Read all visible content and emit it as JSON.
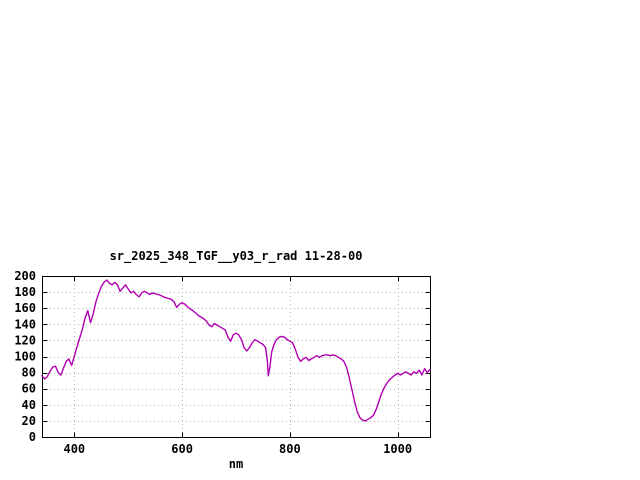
{
  "chart_data": {
    "type": "line",
    "title": "sr_2025_348_TGF__y03_r_rad 11-28-00",
    "xlabel": "nm",
    "ylabel": "",
    "xlim": [
      340,
      1060
    ],
    "ylim": [
      0,
      200
    ],
    "xticks": [
      400,
      600,
      800,
      1000
    ],
    "yticks": [
      0,
      20,
      40,
      60,
      80,
      100,
      120,
      140,
      160,
      180,
      200
    ],
    "grid": true,
    "legend": "none",
    "line_color": "#b000b0",
    "grid_color": "#b4b4b4",
    "border_color": "#000000",
    "series": [
      {
        "points": [
          [
            340,
            76
          ],
          [
            345,
            72
          ],
          [
            350,
            75
          ],
          [
            355,
            82
          ],
          [
            360,
            87
          ],
          [
            365,
            88
          ],
          [
            370,
            80
          ],
          [
            375,
            77
          ],
          [
            380,
            86
          ],
          [
            385,
            94
          ],
          [
            390,
            97
          ],
          [
            395,
            89
          ],
          [
            400,
            100
          ],
          [
            405,
            112
          ],
          [
            410,
            123
          ],
          [
            415,
            134
          ],
          [
            420,
            148
          ],
          [
            425,
            157
          ],
          [
            430,
            142
          ],
          [
            435,
            153
          ],
          [
            440,
            168
          ],
          [
            445,
            178
          ],
          [
            450,
            187
          ],
          [
            455,
            192
          ],
          [
            460,
            195
          ],
          [
            465,
            191
          ],
          [
            470,
            189
          ],
          [
            475,
            192
          ],
          [
            480,
            189
          ],
          [
            485,
            181
          ],
          [
            490,
            185
          ],
          [
            495,
            189
          ],
          [
            500,
            184
          ],
          [
            505,
            179
          ],
          [
            510,
            181
          ],
          [
            515,
            177
          ],
          [
            520,
            174
          ],
          [
            525,
            179
          ],
          [
            530,
            181
          ],
          [
            535,
            179
          ],
          [
            540,
            177
          ],
          [
            545,
            179
          ],
          [
            550,
            178
          ],
          [
            555,
            177
          ],
          [
            560,
            176
          ],
          [
            565,
            174
          ],
          [
            570,
            173
          ],
          [
            575,
            172
          ],
          [
            580,
            171
          ],
          [
            585,
            168
          ],
          [
            590,
            161
          ],
          [
            595,
            165
          ],
          [
            600,
            167
          ],
          [
            605,
            165
          ],
          [
            610,
            162
          ],
          [
            615,
            159
          ],
          [
            620,
            157
          ],
          [
            625,
            154
          ],
          [
            630,
            151
          ],
          [
            635,
            149
          ],
          [
            640,
            147
          ],
          [
            645,
            144
          ],
          [
            650,
            139
          ],
          [
            655,
            137
          ],
          [
            660,
            141
          ],
          [
            665,
            139
          ],
          [
            670,
            137
          ],
          [
            675,
            135
          ],
          [
            680,
            133
          ],
          [
            685,
            124
          ],
          [
            690,
            119
          ],
          [
            695,
            127
          ],
          [
            700,
            129
          ],
          [
            705,
            127
          ],
          [
            710,
            121
          ],
          [
            715,
            111
          ],
          [
            720,
            107
          ],
          [
            725,
            111
          ],
          [
            730,
            117
          ],
          [
            735,
            121
          ],
          [
            740,
            119
          ],
          [
            745,
            117
          ],
          [
            750,
            115
          ],
          [
            755,
            111
          ],
          [
            758,
            95
          ],
          [
            760,
            76
          ],
          [
            763,
            88
          ],
          [
            766,
            105
          ],
          [
            770,
            114
          ],
          [
            775,
            121
          ],
          [
            780,
            124
          ],
          [
            785,
            125
          ],
          [
            790,
            124
          ],
          [
            795,
            121
          ],
          [
            800,
            119
          ],
          [
            805,
            117
          ],
          [
            810,
            109
          ],
          [
            815,
            99
          ],
          [
            820,
            94
          ],
          [
            825,
            97
          ],
          [
            830,
            99
          ],
          [
            835,
            95
          ],
          [
            840,
            97
          ],
          [
            845,
            99
          ],
          [
            850,
            101
          ],
          [
            855,
            99
          ],
          [
            860,
            101
          ],
          [
            865,
            102
          ],
          [
            870,
            102
          ],
          [
            875,
            101
          ],
          [
            880,
            102
          ],
          [
            885,
            101
          ],
          [
            890,
            99
          ],
          [
            895,
            97
          ],
          [
            900,
            94
          ],
          [
            905,
            87
          ],
          [
            910,
            74
          ],
          [
            915,
            59
          ],
          [
            920,
            44
          ],
          [
            925,
            31
          ],
          [
            930,
            24
          ],
          [
            935,
            21
          ],
          [
            940,
            20
          ],
          [
            945,
            22
          ],
          [
            950,
            24
          ],
          [
            955,
            27
          ],
          [
            960,
            34
          ],
          [
            965,
            44
          ],
          [
            970,
            54
          ],
          [
            975,
            61
          ],
          [
            980,
            67
          ],
          [
            985,
            71
          ],
          [
            990,
            74
          ],
          [
            995,
            77
          ],
          [
            1000,
            79
          ],
          [
            1005,
            77
          ],
          [
            1010,
            79
          ],
          [
            1015,
            81
          ],
          [
            1020,
            79
          ],
          [
            1025,
            77
          ],
          [
            1030,
            81
          ],
          [
            1035,
            79
          ],
          [
            1040,
            83
          ],
          [
            1045,
            77
          ],
          [
            1050,
            85
          ],
          [
            1055,
            80
          ],
          [
            1060,
            84
          ]
        ]
      }
    ]
  }
}
